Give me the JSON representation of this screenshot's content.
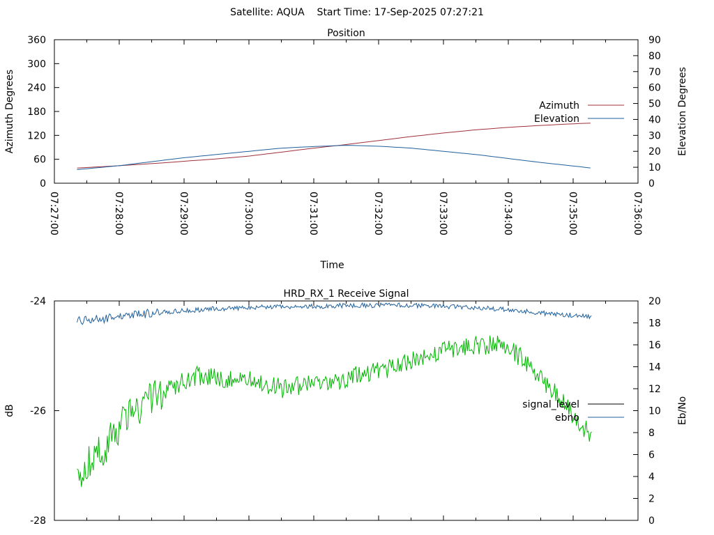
{
  "header": {
    "title": "Satellite: AQUA    Start Time: 17-Sep-2025 07:27:21"
  },
  "chart_data": [
    {
      "type": "line",
      "title": "Position",
      "xlabel": "Time",
      "ylabel": "Azimuth Degrees",
      "y2label": "Elevation Degrees",
      "x_ticks": [
        "07:27:00",
        "07:28:00",
        "07:29:00",
        "07:30:00",
        "07:31:00",
        "07:32:00",
        "07:33:00",
        "07:34:00",
        "07:35:00",
        "07:36:00"
      ],
      "x_range": [
        "07:27:00",
        "07:36:00"
      ],
      "ylim": [
        0,
        360
      ],
      "y_ticks": [
        0,
        60,
        120,
        180,
        240,
        300,
        360
      ],
      "y2lim": [
        0,
        90
      ],
      "y2_ticks": [
        0,
        10,
        20,
        30,
        40,
        50,
        60,
        70,
        80,
        90
      ],
      "legend_position": "right",
      "series": [
        {
          "name": "Azimuth",
          "axis": "y",
          "color": "#a0303a",
          "x": [
            "07:27:21",
            "07:28:00",
            "07:28:30",
            "07:29:00",
            "07:29:30",
            "07:30:00",
            "07:30:30",
            "07:31:00",
            "07:31:30",
            "07:32:00",
            "07:32:30",
            "07:33:00",
            "07:33:30",
            "07:34:00",
            "07:34:30",
            "07:35:00",
            "07:35:17"
          ],
          "values": [
            38,
            44,
            49,
            55,
            61,
            68,
            78,
            88,
            97,
            107,
            117,
            126,
            134,
            140,
            145,
            149,
            151
          ]
        },
        {
          "name": "Elevation",
          "axis": "y2",
          "color": "#1f5f9c",
          "x": [
            "07:27:21",
            "07:28:00",
            "07:28:30",
            "07:29:00",
            "07:29:30",
            "07:30:00",
            "07:30:30",
            "07:31:00",
            "07:31:30",
            "07:32:00",
            "07:32:30",
            "07:33:00",
            "07:33:30",
            "07:34:00",
            "07:34:30",
            "07:35:00",
            "07:35:17"
          ],
          "values": [
            8.5,
            11,
            13.5,
            16,
            18,
            20,
            22,
            23,
            23.8,
            23.2,
            22,
            20,
            18,
            15.5,
            13,
            10.8,
            9.5
          ]
        }
      ]
    },
    {
      "type": "line",
      "title": "HRD_RX_1 Receive Signal",
      "xlabel": "",
      "ylabel": "dB",
      "y2label": "Eb/No",
      "x_range": [
        "07:27:00",
        "07:36:00"
      ],
      "ylim": [
        -28,
        -24
      ],
      "y_ticks": [
        -28,
        -26,
        -24
      ],
      "y2lim": [
        0,
        20
      ],
      "y2_ticks": [
        0,
        2,
        4,
        6,
        8,
        10,
        12,
        14,
        16,
        18,
        20
      ],
      "legend_position": "right",
      "series": [
        {
          "name": "signal_level",
          "axis": "y",
          "color": "#000000",
          "x": [],
          "values": []
        },
        {
          "name": "ebno",
          "axis": "y2",
          "color": "#1f5f9c",
          "x": [
            "07:27:21",
            "07:28:00",
            "07:28:30",
            "07:29:00",
            "07:29:30",
            "07:30:00",
            "07:30:30",
            "07:31:00",
            "07:31:30",
            "07:32:00",
            "07:32:30",
            "07:33:00",
            "07:33:30",
            "07:34:00",
            "07:34:30",
            "07:35:00",
            "07:35:17"
          ],
          "values": [
            18.2,
            18.5,
            18.9,
            19.1,
            19.3,
            19.4,
            19.5,
            19.5,
            19.6,
            19.6,
            19.6,
            19.5,
            19.4,
            19.2,
            18.9,
            18.7,
            18.5
          ]
        },
        {
          "name": "",
          "axis": "y2",
          "color": "#00b400",
          "x": [
            "07:27:21",
            "07:27:30",
            "07:27:45",
            "07:28:00",
            "07:28:15",
            "07:28:30",
            "07:28:45",
            "07:29:00",
            "07:29:15",
            "07:29:30",
            "07:29:45",
            "07:30:00",
            "07:30:15",
            "07:30:30",
            "07:30:45",
            "07:31:00",
            "07:31:15",
            "07:31:30",
            "07:31:45",
            "07:32:00",
            "07:32:15",
            "07:32:30",
            "07:32:45",
            "07:33:00",
            "07:33:15",
            "07:33:30",
            "07:33:45",
            "07:34:00",
            "07:34:15",
            "07:34:30",
            "07:34:45",
            "07:35:00",
            "07:35:17"
          ],
          "values": [
            4.2,
            5.0,
            6.5,
            8.5,
            10.0,
            11.0,
            12.0,
            12.8,
            13.2,
            13.0,
            12.8,
            13.0,
            12.5,
            12.0,
            12.3,
            12.5,
            12.3,
            13.0,
            13.5,
            13.5,
            14.0,
            14.5,
            15.0,
            15.5,
            15.8,
            16.0,
            16.0,
            15.8,
            14.5,
            13.0,
            11.5,
            9.5,
            7.8
          ]
        }
      ]
    }
  ]
}
